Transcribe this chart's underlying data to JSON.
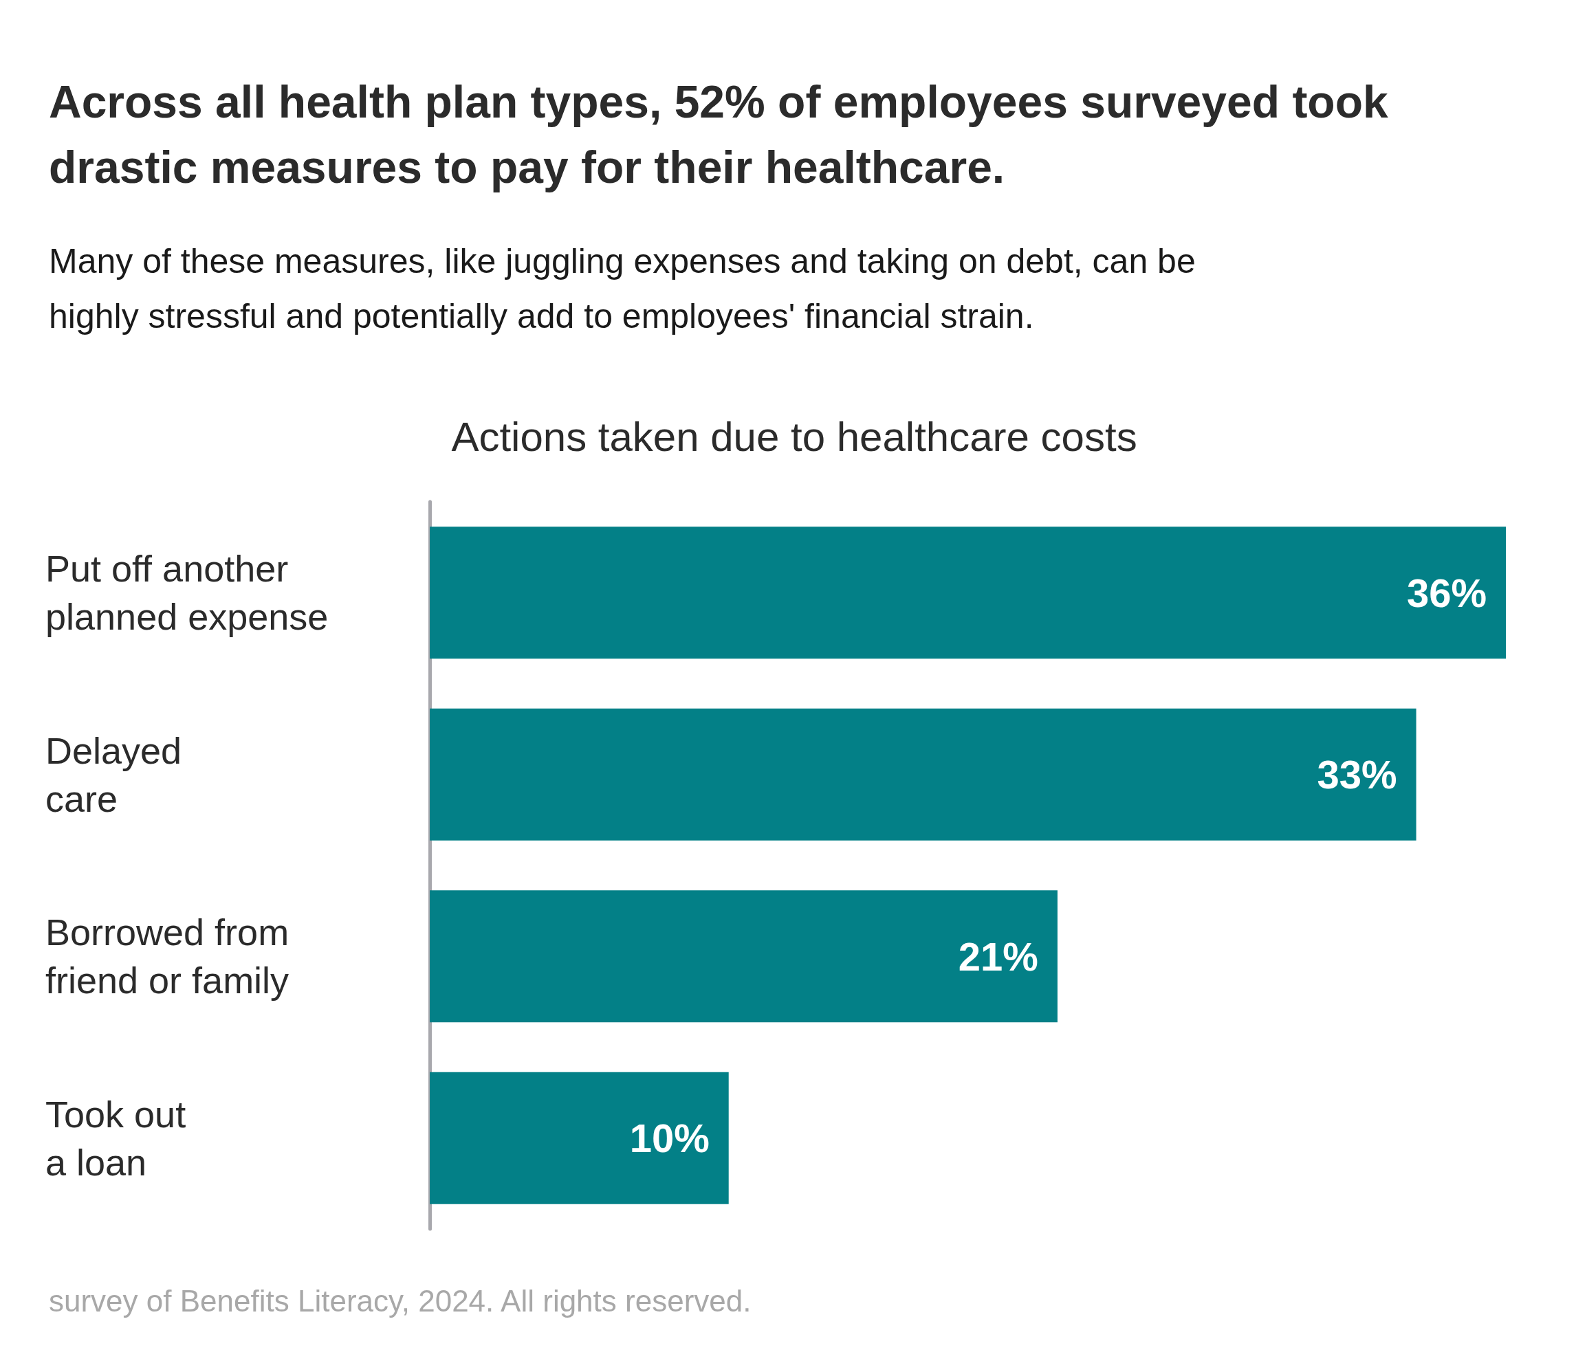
{
  "chart_data": {
    "type": "bar",
    "orientation": "horizontal",
    "title": "Actions taken due to healthcare costs",
    "subtitle": "Across all health plan types, 52% of employees surveyed took drastic measures to pay for their healthcare.",
    "annotations": [
      "Many of these measures, like juggling expenses and taking on debt, can be highly stressful and potentially add to employees' financial strain.",
      "survey of Benefits Literacy, 2024. All rights reserved."
    ],
    "categories": [
      "Put off another\nplanned expense",
      "Delayed\ncare",
      "Borrowed from\nfriend or family",
      "Took out\na loan"
    ],
    "values": [
      36,
      33,
      21,
      10
    ],
    "value_labels": [
      "36%",
      "33%",
      "21%",
      "10%"
    ],
    "color": "#038087"
  }
}
